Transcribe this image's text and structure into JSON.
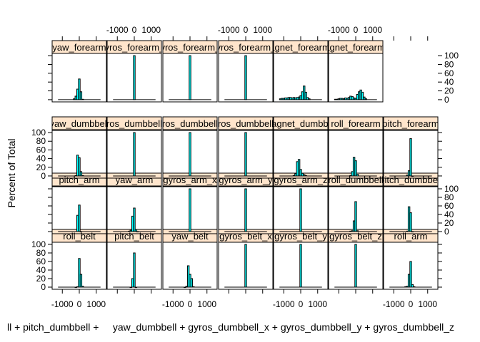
{
  "chart_data": {
    "type": "histogram-lattice",
    "ylabel": "Percent of Total",
    "xlabel": "ll + pitch_dumbbell +     yaw_dumbbell + gyros_dumbbell_x + gyros_dumbbell_y + gyros_dumbbell_z",
    "xlim": [
      -1600,
      1600
    ],
    "ylim": [
      -5,
      105
    ],
    "x_ticks": [
      -1000,
      0,
      1000
    ],
    "x_tick_labels": [
      "-1000",
      "0",
      "1000"
    ],
    "y_ticks": [
      0,
      20,
      40,
      60,
      80,
      100
    ],
    "y_tick_labels": [
      "0",
      "20",
      "40",
      "60",
      "80",
      "100"
    ],
    "colors": {
      "bar_fill": "#00ffff",
      "strip_bg": "#ffe5cc",
      "frame": "#000000"
    },
    "panels": [
      {
        "label": "roll_belt",
        "row": 0,
        "col": 0,
        "bars": [
          [
            -200,
            0
          ],
          [
            -100,
            1
          ],
          [
            0,
            67
          ],
          [
            100,
            30
          ],
          [
            200,
            2
          ]
        ]
      },
      {
        "label": "pitch_belt",
        "row": 0,
        "col": 1,
        "bars": [
          [
            -200,
            0
          ],
          [
            -100,
            20
          ],
          [
            0,
            80
          ],
          [
            100,
            0
          ]
        ]
      },
      {
        "label": "yaw_belt",
        "row": 0,
        "col": 2,
        "bars": [
          [
            -300,
            0
          ],
          [
            -200,
            2
          ],
          [
            -100,
            50
          ],
          [
            0,
            30
          ],
          [
            100,
            20
          ],
          [
            200,
            1
          ]
        ]
      },
      {
        "label": "gyros_belt_x",
        "row": 0,
        "col": 3,
        "bars": [
          [
            0,
            100
          ]
        ]
      },
      {
        "label": "gyros_belt_y",
        "row": 0,
        "col": 4,
        "bars": [
          [
            0,
            100
          ]
        ]
      },
      {
        "label": "gyros_belt_z",
        "row": 0,
        "col": 5,
        "bars": [
          [
            0,
            100
          ]
        ]
      },
      {
        "label": "roll_arm",
        "row": 0,
        "col": 6,
        "bars": [
          [
            -300,
            1
          ],
          [
            -200,
            2
          ],
          [
            -100,
            30
          ],
          [
            0,
            60
          ],
          [
            100,
            6
          ],
          [
            200,
            1
          ]
        ]
      },
      {
        "label": "pitch_arm",
        "row": 1,
        "col": 0,
        "bars": [
          [
            -100,
            38
          ],
          [
            0,
            62
          ],
          [
            100,
            0
          ]
        ]
      },
      {
        "label": "yaw_arm",
        "row": 1,
        "col": 1,
        "bars": [
          [
            -300,
            1
          ],
          [
            -200,
            3
          ],
          [
            -100,
            36
          ],
          [
            0,
            55
          ],
          [
            100,
            5
          ],
          [
            200,
            0
          ]
        ]
      },
      {
        "label": "gyros_arm_x",
        "row": 1,
        "col": 2,
        "bars": [
          [
            0,
            100
          ]
        ]
      },
      {
        "label": "gyros_arm_y",
        "row": 1,
        "col": 3,
        "bars": [
          [
            0,
            100
          ]
        ]
      },
      {
        "label": "gyros_arm_z",
        "row": 1,
        "col": 4,
        "bars": [
          [
            0,
            100
          ]
        ]
      },
      {
        "label": "roll_dumbbell",
        "row": 1,
        "col": 5,
        "bars": [
          [
            -300,
            1
          ],
          [
            -200,
            2
          ],
          [
            -100,
            25
          ],
          [
            0,
            70
          ],
          [
            100,
            2
          ]
        ]
      },
      {
        "label": "pitch_dumbbell",
        "row": 1,
        "col": 6,
        "bars": [
          [
            -200,
            1
          ],
          [
            -100,
            58
          ],
          [
            0,
            44
          ],
          [
            100,
            0
          ]
        ]
      },
      {
        "label": "yaw_dumbbell",
        "row": 2,
        "col": 0,
        "bars": [
          [
            -200,
            1
          ],
          [
            -100,
            48
          ],
          [
            0,
            42
          ],
          [
            100,
            10
          ],
          [
            200,
            1
          ]
        ]
      },
      {
        "label": "gyros_dumbbell_x",
        "row": 2,
        "col": 1,
        "bars": [
          [
            0,
            100
          ]
        ]
      },
      {
        "label": "gyros_dumbbell_y",
        "row": 2,
        "col": 2,
        "bars": [
          [
            0,
            100
          ]
        ]
      },
      {
        "label": "gyros_dumbbell_z",
        "row": 2,
        "col": 3,
        "bars": [
          [
            0,
            100
          ]
        ]
      },
      {
        "label": "magnet_dumbbell",
        "row": 2,
        "col": 4,
        "bars": [
          [
            -400,
            1
          ],
          [
            -300,
            5
          ],
          [
            -200,
            33
          ],
          [
            -100,
            38
          ],
          [
            0,
            15
          ],
          [
            100,
            6
          ],
          [
            200,
            3
          ],
          [
            300,
            1
          ]
        ]
      },
      {
        "label": "roll_forearm",
        "row": 2,
        "col": 5,
        "bars": [
          [
            -300,
            1
          ],
          [
            -200,
            10
          ],
          [
            -100,
            43
          ],
          [
            0,
            35
          ],
          [
            100,
            4
          ]
        ]
      },
      {
        "label": "pitch_forearm",
        "row": 2,
        "col": 6,
        "bars": [
          [
            -200,
            2
          ],
          [
            -100,
            12
          ],
          [
            0,
            86
          ],
          [
            100,
            0
          ]
        ]
      },
      {
        "label": "yaw_forearm",
        "row": 3,
        "col": 0,
        "bars": [
          [
            -300,
            2
          ],
          [
            -200,
            8
          ],
          [
            -100,
            24
          ],
          [
            0,
            47
          ],
          [
            100,
            18
          ],
          [
            200,
            1
          ]
        ]
      },
      {
        "label": "gyros_forearm_x",
        "row": 3,
        "col": 1,
        "bars": [
          [
            0,
            100
          ]
        ]
      },
      {
        "label": "gyros_forearm_y",
        "row": 3,
        "col": 2,
        "bars": [
          [
            0,
            100
          ]
        ]
      },
      {
        "label": "gyros_forearm_z",
        "row": 3,
        "col": 3,
        "bars": [
          [
            0,
            100
          ]
        ]
      },
      {
        "label": "magnet_forearm_x",
        "row": 3,
        "col": 4,
        "bars": [
          [
            -1200,
            2
          ],
          [
            -1100,
            3
          ],
          [
            -1000,
            3
          ],
          [
            -900,
            4
          ],
          [
            -800,
            4
          ],
          [
            -700,
            5
          ],
          [
            -600,
            5
          ],
          [
            -500,
            4
          ],
          [
            -400,
            5
          ],
          [
            -300,
            4
          ],
          [
            -200,
            5
          ],
          [
            -100,
            6
          ],
          [
            0,
            9
          ],
          [
            100,
            18
          ],
          [
            200,
            31
          ],
          [
            300,
            17
          ],
          [
            400,
            5
          ],
          [
            500,
            2
          ]
        ]
      },
      {
        "label": "magnet_forearm_y",
        "row": 3,
        "col": 5,
        "bars": [
          [
            -1200,
            1
          ],
          [
            -1100,
            1
          ],
          [
            -1000,
            2
          ],
          [
            -900,
            3
          ],
          [
            -800,
            3
          ],
          [
            -700,
            2
          ],
          [
            -600,
            4
          ],
          [
            -500,
            3
          ],
          [
            -400,
            5
          ],
          [
            -300,
            8
          ],
          [
            -200,
            7
          ],
          [
            -100,
            4
          ],
          [
            0,
            3
          ],
          [
            100,
            12
          ],
          [
            200,
            18
          ],
          [
            300,
            22
          ],
          [
            400,
            17
          ],
          [
            500,
            6
          ],
          [
            600,
            2
          ]
        ]
      }
    ]
  }
}
